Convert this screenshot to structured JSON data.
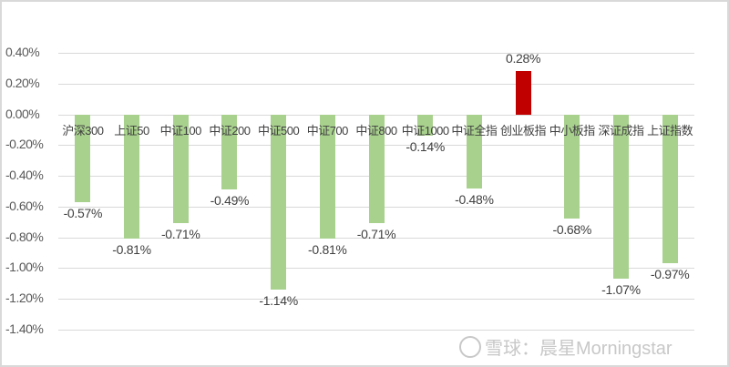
{
  "chart_data": {
    "type": "bar",
    "title": "",
    "xlabel": "",
    "ylabel": "",
    "ylim": [
      -1.4,
      0.4
    ],
    "yticks": [
      "0.40%",
      "0.20%",
      "0.00%",
      "-0.20%",
      "-0.40%",
      "-0.60%",
      "-0.80%",
      "-1.00%",
      "-1.20%",
      "-1.40%"
    ],
    "grid": true,
    "legend": "none",
    "categories": [
      "沪深300",
      "上证50",
      "中证100",
      "中证200",
      "中证500",
      "中证700",
      "中证800",
      "中证1000",
      "中证全指",
      "创业板指",
      "中小板指",
      "深证成指",
      "上证指数"
    ],
    "values": [
      -0.57,
      -0.81,
      -0.71,
      -0.49,
      -1.14,
      -0.81,
      -0.71,
      -0.14,
      -0.48,
      0.28,
      -0.68,
      -1.07,
      -0.97
    ],
    "labels": [
      "-0.57%",
      "-0.81%",
      "-0.71%",
      "-0.49%",
      "-1.14%",
      "-0.81%",
      "-0.71%",
      "-0.14%",
      "-0.48%",
      "0.28%",
      "-0.68%",
      "-1.07%",
      "-0.97%"
    ],
    "colors": {
      "positive": "#c00000",
      "negative": "#a9d18e"
    }
  },
  "watermark": {
    "text": "雪球：晨星Morningstar",
    "icon": "xueqiu-logo-icon"
  }
}
